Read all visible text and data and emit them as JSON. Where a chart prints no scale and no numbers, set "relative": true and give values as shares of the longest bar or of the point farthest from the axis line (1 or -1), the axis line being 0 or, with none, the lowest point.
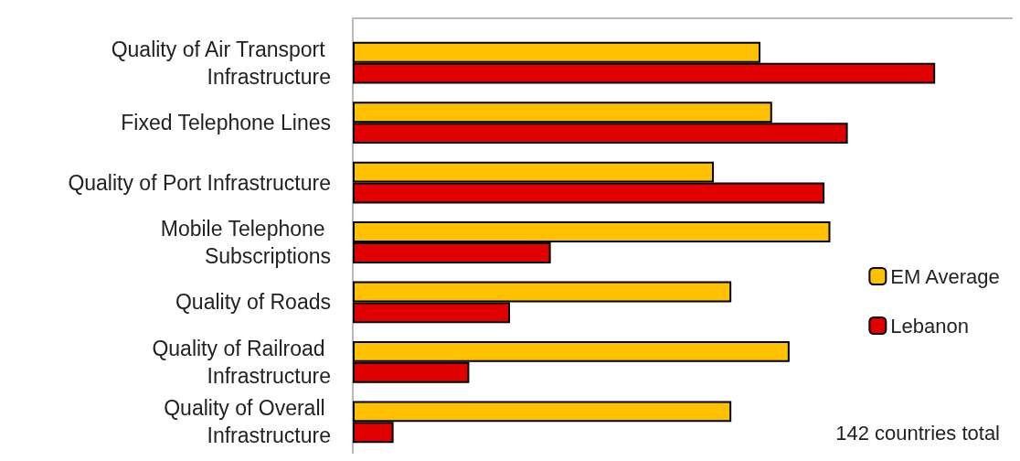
{
  "chart_data": {
    "type": "bar",
    "orientation": "horizontal",
    "relative": true,
    "categories": [
      "Quality of Air Transport Infrastructure",
      "Fixed Telephone Lines",
      "Quality of Port Infrastructure",
      "Mobile Telephone Subscriptions",
      "Quality of Roads",
      "Quality of Railroad Infrastructure",
      "Quality of Overall Infrastructure"
    ],
    "series": [
      {
        "name": "EM Average",
        "color": "#ffc000",
        "values": [
          0.7,
          0.72,
          0.62,
          0.82,
          0.65,
          0.75,
          0.65
        ]
      },
      {
        "name": "Lebanon",
        "color": "#e00000",
        "values": [
          1,
          0.85,
          0.81,
          0.34,
          0.27,
          0.2,
          0.07
        ]
      }
    ],
    "legend": "right",
    "annotations": [
      "142 countries total"
    ]
  }
}
